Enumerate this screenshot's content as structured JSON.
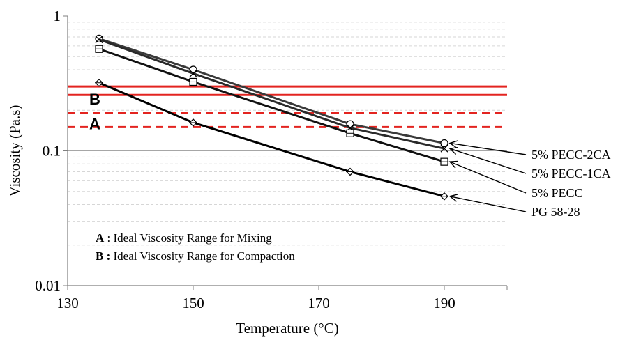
{
  "chart_data": {
    "type": "line",
    "xlabel": "Temperature (°C)",
    "ylabel": "Viscosity (Pa.s)",
    "xlim": [
      130,
      200
    ],
    "ylim": [
      0.01,
      1
    ],
    "y_scale": "log",
    "x_ticks": [
      "130",
      "150",
      "170",
      "190"
    ],
    "y_ticks": [
      "0.01",
      "0.1",
      "1"
    ],
    "grid": "horizontal",
    "series": [
      {
        "name": "5% PECC-2CA",
        "marker": "circle",
        "x": [
          135,
          150,
          175,
          190
        ],
        "y": [
          0.68,
          0.4,
          0.158,
          0.114
        ]
      },
      {
        "name": "5% PECC-1CA",
        "marker": "cross",
        "x": [
          135,
          150,
          175,
          190
        ],
        "y": [
          0.67,
          0.375,
          0.148,
          0.104
        ]
      },
      {
        "name": "5% PECC",
        "marker": "square",
        "x": [
          135,
          150,
          175,
          190
        ],
        "y": [
          0.57,
          0.325,
          0.135,
          0.083
        ]
      },
      {
        "name": "PG 58-28",
        "marker": "diamond",
        "x": [
          135,
          150,
          175,
          190
        ],
        "y": [
          0.32,
          0.162,
          0.07,
          0.046
        ]
      }
    ],
    "reference_lines": [
      {
        "y": 0.3,
        "style": "solid",
        "color": "#e32420"
      },
      {
        "y": 0.26,
        "style": "solid",
        "color": "#e32420"
      },
      {
        "y": 0.19,
        "style": "dashed",
        "color": "#e32420"
      },
      {
        "y": 0.15,
        "style": "dashed",
        "color": "#e32420"
      }
    ],
    "band_labels": [
      {
        "text": "B",
        "y": 0.24
      },
      {
        "text": "A",
        "y": 0.157
      }
    ],
    "notes": [
      {
        "key": "A",
        "text": " : Ideal Viscosity Range for Mixing"
      },
      {
        "key": "B :",
        "text": " Ideal Viscosity Range for Compaction"
      }
    ]
  }
}
